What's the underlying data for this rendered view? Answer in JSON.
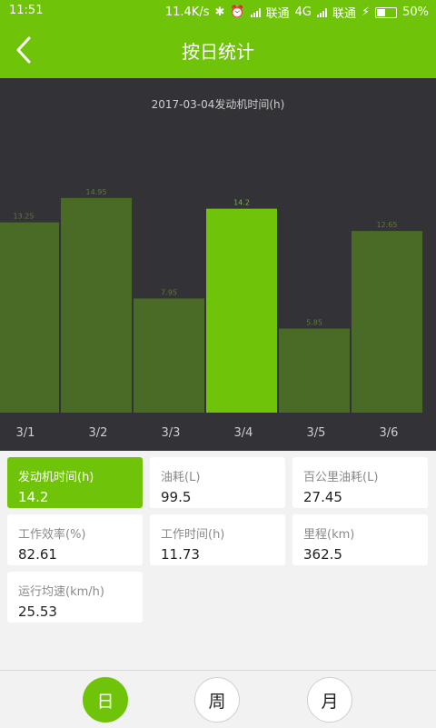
{
  "status_bar": {
    "time": "11:51",
    "speed": "11.4K/s",
    "carrier1": "联通",
    "network": "4G",
    "carrier2": "联通",
    "battery": "50%",
    "battery_level": 0.5
  },
  "header": {
    "title": "按日统计",
    "back_icon": "chevron-left-icon"
  },
  "chart_data": {
    "type": "bar",
    "title": "2017-03-04发动机时间(h)",
    "categories": [
      "3/1",
      "3/2",
      "3/3",
      "3/4",
      "3/5",
      "3/6"
    ],
    "values": [
      13.25,
      14.95,
      7.95,
      14.2,
      5.85,
      12.65
    ],
    "value_labels": [
      "13.25",
      "14.95",
      "7.95",
      "14.2",
      "5.85",
      "12.65"
    ],
    "highlight_index": 3,
    "ylim": [
      0,
      15
    ],
    "grid": false,
    "colors": {
      "bar": "#4a6b25",
      "highlight": "#6fc40a",
      "background": "#323237"
    }
  },
  "metrics": [
    {
      "label": "发动机时间(h)",
      "value": "14.2",
      "active": true
    },
    {
      "label": "油耗(L)",
      "value": "99.5"
    },
    {
      "label": "百公里油耗(L)",
      "value": "27.45"
    },
    {
      "label": "工作效率(%)",
      "value": "82.61"
    },
    {
      "label": "工作时间(h)",
      "value": "11.73"
    },
    {
      "label": "里程(km)",
      "value": "362.5"
    },
    {
      "label": "运行均速(km/h)",
      "value": "25.53"
    }
  ],
  "periods": [
    {
      "label": "日",
      "active": true
    },
    {
      "label": "周"
    },
    {
      "label": "月"
    }
  ],
  "colors": {
    "accent": "#6fc40a"
  }
}
